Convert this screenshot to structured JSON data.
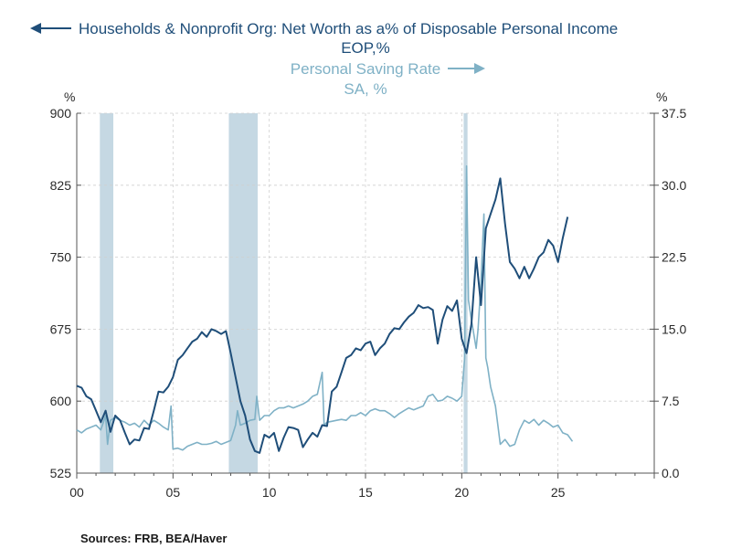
{
  "chart_data": {
    "type": "line",
    "title_left": "Households & Nonprofit Org: Net Worth as a% of Disposable Personal Income",
    "title_left_sub": "EOP,%",
    "title_right": "Personal Saving Rate",
    "title_right_sub": "SA, %",
    "y_left_unit": "%",
    "y_right_unit": "%",
    "y_left_ticks": [
      "900",
      "825",
      "750",
      "675",
      "600",
      "525"
    ],
    "y_left_tick_values": [
      900,
      825,
      750,
      675,
      600,
      525
    ],
    "y_right_ticks": [
      "37.5",
      "30.0",
      "22.5",
      "15.0",
      "7.5",
      "0.0"
    ],
    "y_right_tick_values": [
      37.5,
      30.0,
      22.5,
      15.0,
      7.5,
      0.0
    ],
    "ylim_left": [
      525,
      900
    ],
    "ylim_right": [
      0,
      37.5
    ],
    "xlim": [
      2000,
      2030
    ],
    "x_ticks": [
      "00",
      "05",
      "10",
      "15",
      "20",
      "25"
    ],
    "x_tick_values": [
      2000,
      2005,
      2010,
      2015,
      2020,
      2025
    ],
    "source": "Sources:  FRB, BEA/Haver",
    "colors": {
      "net_worth": "#1f4e79",
      "saving_rate": "#7fb1c6",
      "recession": "#c5d8e3",
      "grid": "#cfcfcf",
      "axis": "#555555"
    },
    "recessions": [
      [
        2001.2,
        2001.9
      ],
      [
        2007.9,
        2009.4
      ],
      [
        2020.1,
        2020.3
      ]
    ],
    "series": [
      {
        "name": "Net Worth as % of Disposable Personal Income",
        "axis": "left",
        "x": [
          2000.0,
          2000.25,
          2000.5,
          2000.75,
          2001.0,
          2001.25,
          2001.5,
          2001.75,
          2002.0,
          2002.25,
          2002.5,
          2002.75,
          2003.0,
          2003.25,
          2003.5,
          2003.75,
          2004.0,
          2004.25,
          2004.5,
          2004.75,
          2005.0,
          2005.25,
          2005.5,
          2005.75,
          2006.0,
          2006.25,
          2006.5,
          2006.75,
          2007.0,
          2007.25,
          2007.5,
          2007.75,
          2008.0,
          2008.25,
          2008.5,
          2008.75,
          2009.0,
          2009.25,
          2009.5,
          2009.75,
          2010.0,
          2010.25,
          2010.5,
          2010.75,
          2011.0,
          2011.25,
          2011.5,
          2011.75,
          2012.0,
          2012.25,
          2012.5,
          2012.75,
          2013.0,
          2013.25,
          2013.5,
          2013.75,
          2014.0,
          2014.25,
          2014.5,
          2014.75,
          2015.0,
          2015.25,
          2015.5,
          2015.75,
          2016.0,
          2016.25,
          2016.5,
          2016.75,
          2017.0,
          2017.25,
          2017.5,
          2017.75,
          2018.0,
          2018.25,
          2018.5,
          2018.75,
          2019.0,
          2019.25,
          2019.5,
          2019.75,
          2020.0,
          2020.25,
          2020.5,
          2020.75,
          2021.0,
          2021.25,
          2021.5,
          2021.75,
          2022.0,
          2022.25,
          2022.5,
          2022.75,
          2023.0,
          2023.25,
          2023.5,
          2023.75,
          2024.0,
          2024.25,
          2024.5,
          2024.75,
          2025.0,
          2025.25,
          2025.5
        ],
        "values": [
          616,
          614,
          605,
          602,
          590,
          578,
          590,
          568,
          585,
          580,
          567,
          555,
          560,
          559,
          572,
          571,
          590,
          610,
          609,
          615,
          625,
          643,
          648,
          655,
          662,
          665,
          672,
          667,
          675,
          673,
          670,
          673,
          650,
          625,
          600,
          585,
          560,
          548,
          546,
          565,
          562,
          567,
          548,
          562,
          573,
          572,
          570,
          552,
          560,
          567,
          563,
          575,
          574,
          610,
          615,
          630,
          645,
          648,
          655,
          653,
          660,
          662,
          648,
          655,
          660,
          670,
          676,
          675,
          682,
          688,
          692,
          700,
          697,
          698,
          695,
          660,
          685,
          699,
          694,
          705,
          665,
          650,
          680,
          750,
          700,
          780,
          795,
          810,
          832,
          785,
          745,
          738,
          728,
          740,
          728,
          738,
          750,
          755,
          768,
          762,
          745,
          770,
          792
        ]
      },
      {
        "name": "Personal Saving Rate",
        "axis": "right",
        "x": [
          2000.0,
          2000.25,
          2000.5,
          2000.75,
          2001.0,
          2001.25,
          2001.5,
          2001.6,
          2001.75,
          2002.0,
          2002.25,
          2002.5,
          2002.75,
          2003.0,
          2003.25,
          2003.5,
          2003.75,
          2004.0,
          2004.25,
          2004.5,
          2004.75,
          2004.9,
          2005.0,
          2005.25,
          2005.5,
          2005.75,
          2006.0,
          2006.25,
          2006.5,
          2006.75,
          2007.0,
          2007.25,
          2007.5,
          2007.75,
          2008.0,
          2008.25,
          2008.35,
          2008.5,
          2008.75,
          2009.0,
          2009.25,
          2009.35,
          2009.5,
          2009.75,
          2010.0,
          2010.25,
          2010.5,
          2010.75,
          2011.0,
          2011.25,
          2011.5,
          2011.75,
          2012.0,
          2012.25,
          2012.5,
          2012.75,
          2012.85,
          2013.0,
          2013.25,
          2013.5,
          2013.75,
          2014.0,
          2014.25,
          2014.5,
          2014.75,
          2015.0,
          2015.25,
          2015.5,
          2015.75,
          2016.0,
          2016.25,
          2016.5,
          2016.75,
          2017.0,
          2017.25,
          2017.5,
          2017.75,
          2018.0,
          2018.25,
          2018.5,
          2018.75,
          2019.0,
          2019.25,
          2019.5,
          2019.75,
          2020.0,
          2020.15,
          2020.25,
          2020.35,
          2020.5,
          2020.75,
          2020.85,
          2021.0,
          2021.15,
          2021.25,
          2021.35,
          2021.5,
          2021.75,
          2022.0,
          2022.25,
          2022.5,
          2022.75,
          2023.0,
          2023.25,
          2023.5,
          2023.75,
          2024.0,
          2024.25,
          2024.5,
          2024.75,
          2025.0,
          2025.25,
          2025.5,
          2025.75
        ],
        "values": [
          4.5,
          4.2,
          4.6,
          4.8,
          5.0,
          4.5,
          6.0,
          3.0,
          5.5,
          5.8,
          5.5,
          5.3,
          5.0,
          5.2,
          4.8,
          5.5,
          5.0,
          5.5,
          5.2,
          4.8,
          4.5,
          7.0,
          2.5,
          2.6,
          2.4,
          2.8,
          3.0,
          3.2,
          3.0,
          3.0,
          3.1,
          3.3,
          3.0,
          3.2,
          3.4,
          5.0,
          6.5,
          5.0,
          5.2,
          5.5,
          5.6,
          8.0,
          5.5,
          6.0,
          6.0,
          6.5,
          6.8,
          6.8,
          7.0,
          6.8,
          7.0,
          7.2,
          7.5,
          8.0,
          8.2,
          10.5,
          5.0,
          5.3,
          5.4,
          5.5,
          5.6,
          5.5,
          6.0,
          6.0,
          6.3,
          6.0,
          6.5,
          6.7,
          6.5,
          6.5,
          6.2,
          5.8,
          6.2,
          6.5,
          6.8,
          6.6,
          6.8,
          7.0,
          8.0,
          8.2,
          7.5,
          7.6,
          8.0,
          7.8,
          7.5,
          8.0,
          12.0,
          32.0,
          18.0,
          16.0,
          13.0,
          15.0,
          20.0,
          27.0,
          12.0,
          11.0,
          9.0,
          7.0,
          3.0,
          3.5,
          2.8,
          3.0,
          4.5,
          5.5,
          5.2,
          5.6,
          5.0,
          5.5,
          5.2,
          4.8,
          5.0,
          4.2,
          4.0,
          3.3
        ]
      }
    ]
  }
}
